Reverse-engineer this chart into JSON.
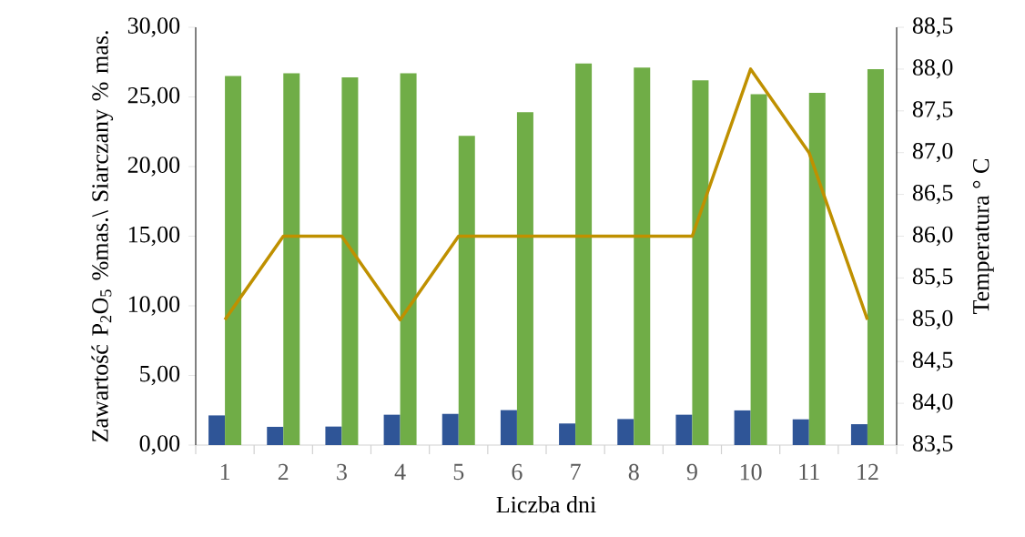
{
  "chart_data": {
    "type": "bar",
    "xlabel": "Liczba dni",
    "ylabel": "Zawartość P$_{2}$O$_{5}$ %mas.\\ Siarczany % mas.",
    "y2label": "Temperatura ° C",
    "categories": [
      "1",
      "2",
      "3",
      "4",
      "5",
      "6",
      "7",
      "8",
      "9",
      "10",
      "11",
      "12"
    ],
    "series": [
      {
        "color": "#2f5597",
        "values": [
          2.13,
          1.31,
          1.33,
          2.18,
          2.24,
          2.51,
          1.55,
          1.87,
          2.18,
          2.49,
          1.85,
          1.5
        ]
      },
      {
        "color": "#70ad47",
        "values": [
          26.5,
          26.7,
          26.4,
          26.7,
          22.2,
          23.9,
          27.4,
          27.1,
          26.2,
          25.2,
          25.3,
          27.0
        ]
      },
      {
        "type": "line",
        "axis": "y2",
        "color": "#bf9000",
        "values": [
          85,
          86,
          86,
          85,
          86,
          86,
          86,
          86,
          86,
          88,
          87,
          85
        ]
      }
    ],
    "ylim": [
      0,
      30
    ],
    "yticks": [
      {
        "value": 0,
        "label": "0,00"
      },
      {
        "value": 5,
        "label": "5,00"
      },
      {
        "value": 10,
        "label": "10,00"
      },
      {
        "value": 15,
        "label": "15,00"
      },
      {
        "value": 20,
        "label": "20,00"
      },
      {
        "value": 25,
        "label": "25,00"
      },
      {
        "value": 30,
        "label": "30,00"
      }
    ],
    "y2lim": [
      83.5,
      88.5
    ],
    "y2ticks": [
      {
        "value": 83.5,
        "label": "83,5"
      },
      {
        "value": 84,
        "label": "84,0"
      },
      {
        "value": 84.5,
        "label": "84,5"
      },
      {
        "value": 85,
        "label": "85,0"
      },
      {
        "value": 85.5,
        "label": "85,5"
      },
      {
        "value": 86,
        "label": "86,0"
      },
      {
        "value": 86.5,
        "label": "86,5"
      },
      {
        "value": 87,
        "label": "87,0"
      },
      {
        "value": 87.5,
        "label": "87,5"
      },
      {
        "value": 88,
        "label": "88,0"
      },
      {
        "value": 88.5,
        "label": "88,5"
      }
    ]
  }
}
